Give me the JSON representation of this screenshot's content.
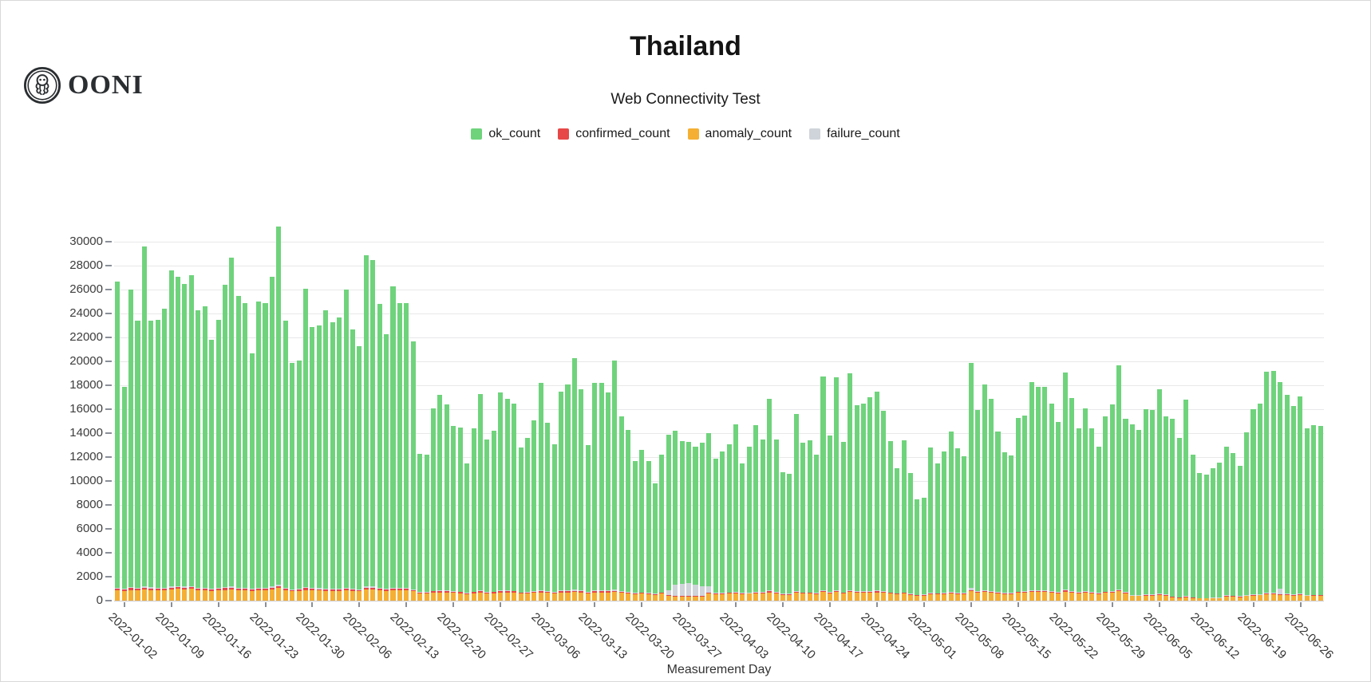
{
  "header": {
    "title": "Thailand",
    "subtitle": "Web Connectivity Test",
    "logo_text": "OONI",
    "logo_icon": "ooni-octopus-icon"
  },
  "legend": [
    {
      "label": "ok_count",
      "color": "#6FD37C"
    },
    {
      "label": "confirmed_count",
      "color": "#E74747"
    },
    {
      "label": "anomaly_count",
      "color": "#F5AF33"
    },
    {
      "label": "failure_count",
      "color": "#CFD4DA"
    }
  ],
  "colors": {
    "ok": "#6FD37C",
    "confirmed": "#E74747",
    "anomaly": "#F5AF33",
    "failure": "#CFD4DA",
    "gridline": "#e8e8ea",
    "axis_text": "#3c3c3c"
  },
  "chart_data": {
    "type": "bar",
    "stacked": true,
    "title": "Thailand",
    "subtitle": "Web Connectivity Test",
    "xlabel": "Measurement Day",
    "ylabel": "",
    "start_date": "2022-01-01",
    "end_date": "2022-06-29",
    "days": 180,
    "y_max_scale": 33667,
    "y_ticks": [
      0,
      2000,
      4000,
      6000,
      8000,
      10000,
      12000,
      14000,
      16000,
      18000,
      20000,
      22000,
      24000,
      26000,
      28000,
      30000
    ],
    "x_tick_labels": [
      "2022-01-02",
      "2022-01-09",
      "2022-01-16",
      "2022-01-23",
      "2022-01-30",
      "2022-02-06",
      "2022-02-13",
      "2022-02-20",
      "2022-02-27",
      "2022-03-06",
      "2022-03-13",
      "2022-03-20",
      "2022-03-27",
      "2022-04-03",
      "2022-04-10",
      "2022-04-17",
      "2022-04-24",
      "2022-05-01",
      "2022-05-08",
      "2022-05-15",
      "2022-05-22",
      "2022-05-29",
      "2022-06-05",
      "2022-06-12",
      "2022-06-19",
      "2022-06-26"
    ],
    "x_tick_day_indices": [
      1,
      8,
      15,
      22,
      29,
      36,
      43,
      50,
      57,
      64,
      71,
      78,
      85,
      92,
      99,
      106,
      113,
      120,
      127,
      134,
      141,
      148,
      155,
      162,
      169,
      176
    ],
    "series_order_bottom_to_top": [
      "anomaly_count",
      "confirmed_count",
      "failure_count",
      "ok_count"
    ],
    "ok_count_derivation": "ok_count = totals - anomaly_count - confirmed_count - failure_count",
    "totals": [
      26700,
      17900,
      26000,
      23400,
      29600,
      23400,
      23500,
      24400,
      27600,
      27100,
      26500,
      27200,
      24300,
      24600,
      21800,
      23500,
      26400,
      28700,
      25500,
      24900,
      20700,
      25000,
      24900,
      27100,
      31300,
      23400,
      19900,
      20100,
      26100,
      22900,
      23000,
      24300,
      23300,
      23650,
      26000,
      22700,
      21300,
      28900,
      28500,
      24800,
      22300,
      26300,
      24900,
      24900,
      21700,
      12300,
      12200,
      16100,
      17200,
      16400,
      14600,
      14500,
      11500,
      14400,
      17300,
      13500,
      14200,
      17400,
      16900,
      16500,
      12800,
      13600,
      15100,
      18200,
      14900,
      13100,
      17500,
      18100,
      20300,
      17700,
      13000,
      18200,
      18200,
      17400,
      20100,
      15400,
      14300,
      11700,
      12600,
      11700,
      9800,
      12200,
      13900,
      14200,
      13350,
      13250,
      12900,
      13200,
      14000,
      11850,
      12500,
      13050,
      14730,
      11500,
      12900,
      14640,
      13440,
      16900,
      13440,
      10770,
      10600,
      15630,
      13180,
      13390,
      12170,
      18730,
      13820,
      18700,
      13250,
      19000,
      16350,
      16500,
      17000,
      17500,
      15900,
      13350,
      11100,
      13400,
      10650,
      8450,
      8600,
      12800,
      11450,
      12500,
      14150,
      12750,
      12100,
      19850,
      15950,
      18100,
      16900,
      14150,
      12400,
      12150,
      15300,
      15500,
      18300,
      17900,
      17850,
      16450,
      14950,
      19050,
      16950,
      14400,
      16100,
      14400,
      12850,
      15400,
      16400,
      19700,
      15200,
      14750,
      14280,
      15980,
      15930,
      17700,
      15400,
      15180,
      13600,
      16800,
      12230,
      10660,
      10560,
      11050,
      11520,
      12900,
      12340,
      11300,
      14100,
      15980,
      16470,
      19160,
      19200,
      18300,
      17220,
      16300,
      17050,
      14400,
      14690,
      14600
    ],
    "anomaly_count": [
      850,
      800,
      900,
      870,
      950,
      900,
      880,
      860,
      950,
      1000,
      950,
      980,
      900,
      870,
      820,
      850,
      900,
      950,
      880,
      860,
      800,
      880,
      870,
      950,
      1050,
      880,
      780,
      800,
      900,
      850,
      840,
      820,
      800,
      810,
      880,
      800,
      780,
      950,
      940,
      850,
      800,
      880,
      850,
      850,
      780,
      600,
      590,
      680,
      700,
      690,
      640,
      630,
      560,
      630,
      700,
      610,
      630,
      700,
      690,
      680,
      580,
      600,
      650,
      700,
      640,
      590,
      680,
      700,
      720,
      690,
      590,
      700,
      700,
      680,
      720,
      650,
      620,
      560,
      580,
      560,
      500,
      570,
      400,
      330,
      320,
      320,
      310,
      320,
      600,
      560,
      560,
      580,
      620,
      540,
      570,
      630,
      590,
      700,
      590,
      500,
      490,
      650,
      580,
      580,
      550,
      720,
      600,
      720,
      580,
      730,
      660,
      660,
      680,
      700,
      650,
      580,
      520,
      580,
      500,
      420,
      430,
      560,
      520,
      550,
      610,
      560,
      540,
      780,
      660,
      720,
      690,
      610,
      550,
      540,
      640,
      650,
      720,
      710,
      710,
      670,
      630,
      760,
      690,
      620,
      670,
      620,
      560,
      640,
      670,
      780,
      630,
      380,
      370,
      420,
      420,
      480,
      410,
      280,
      220,
      300,
      200,
      170,
      170,
      180,
      190,
      350,
      330,
      300,
      380,
      430,
      440,
      520,
      520,
      490,
      460,
      430,
      460,
      380,
      390,
      390
    ],
    "confirmed_count": [
      130,
      110,
      140,
      120,
      150,
      130,
      120,
      130,
      150,
      140,
      130,
      150,
      120,
      130,
      110,
      120,
      140,
      150,
      130,
      120,
      110,
      130,
      120,
      140,
      160,
      120,
      100,
      110,
      140,
      120,
      120,
      120,
      110,
      110,
      130,
      110,
      100,
      150,
      150,
      120,
      110,
      130,
      120,
      120,
      100,
      70,
      70,
      90,
      100,
      90,
      80,
      80,
      60,
      80,
      100,
      75,
      80,
      100,
      95,
      90,
      70,
      75,
      85,
      100,
      80,
      70,
      95,
      100,
      110,
      95,
      70,
      100,
      100,
      95,
      110,
      85,
      80,
      60,
      70,
      60,
      50,
      65,
      70,
      60,
      60,
      60,
      60,
      60,
      75,
      60,
      60,
      65,
      70,
      55,
      60,
      70,
      65,
      85,
      65,
      50,
      50,
      75,
      65,
      65,
      60,
      95,
      70,
      95,
      65,
      95,
      80,
      80,
      85,
      85,
      80,
      65,
      55,
      65,
      50,
      40,
      40,
      60,
      55,
      60,
      65,
      60,
      55,
      90,
      70,
      85,
      75,
      65,
      55,
      55,
      65,
      70,
      85,
      80,
      80,
      75,
      65,
      90,
      75,
      65,
      70,
      65,
      60,
      70,
      75,
      90,
      65,
      55,
      50,
      60,
      60,
      70,
      55,
      45,
      40,
      50,
      40,
      35,
      35,
      40,
      40,
      50,
      45,
      40,
      55,
      60,
      60,
      75,
      75,
      70,
      65,
      60,
      65,
      55,
      55,
      55
    ],
    "failure_count": [
      90,
      70,
      80,
      80,
      100,
      80,
      80,
      90,
      100,
      90,
      90,
      100,
      80,
      90,
      70,
      80,
      90,
      100,
      90,
      80,
      70,
      80,
      80,
      90,
      110,
      80,
      70,
      70,
      90,
      80,
      80,
      80,
      75,
      80,
      90,
      75,
      70,
      100,
      100,
      85,
      75,
      90,
      85,
      85,
      70,
      50,
      50,
      60,
      65,
      60,
      55,
      55,
      45,
      55,
      65,
      50,
      55,
      65,
      60,
      60,
      50,
      55,
      60,
      70,
      55,
      50,
      65,
      70,
      75,
      65,
      50,
      70,
      70,
      65,
      120,
      60,
      55,
      45,
      50,
      45,
      40,
      50,
      420,
      950,
      1050,
      1100,
      980,
      820,
      520,
      60,
      45,
      50,
      55,
      45,
      45,
      55,
      50,
      65,
      50,
      40,
      40,
      60,
      50,
      50,
      45,
      75,
      55,
      75,
      50,
      75,
      60,
      60,
      65,
      65,
      60,
      50,
      45,
      50,
      40,
      35,
      35,
      45,
      40,
      45,
      55,
      45,
      45,
      200,
      55,
      65,
      60,
      50,
      45,
      45,
      55,
      55,
      65,
      65,
      65,
      60,
      55,
      70,
      60,
      50,
      55,
      50,
      45,
      55,
      60,
      75,
      55,
      45,
      40,
      50,
      50,
      55,
      45,
      40,
      35,
      45,
      35,
      30,
      30,
      35,
      35,
      40,
      40,
      35,
      45,
      50,
      50,
      60,
      60,
      420,
      55,
      50,
      55,
      45,
      45,
      45
    ]
  },
  "axes": {
    "x_title": "Measurement Day"
  }
}
